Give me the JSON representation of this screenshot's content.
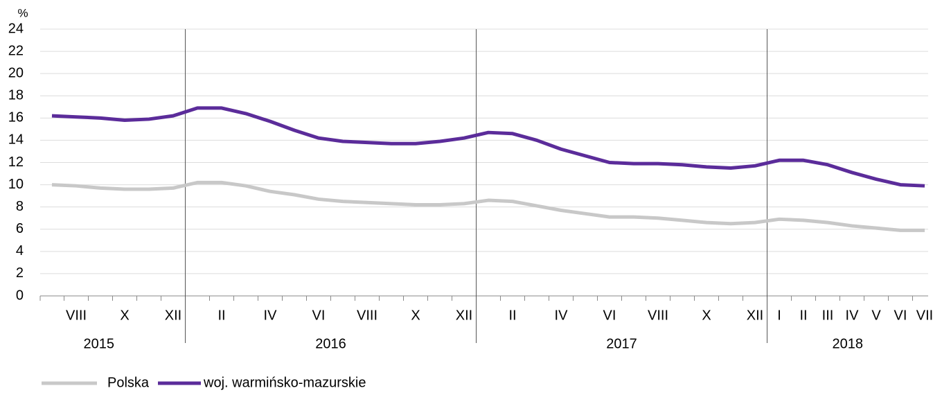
{
  "chart_data": {
    "type": "line",
    "y_unit": "%",
    "categories": [
      null,
      "VIII",
      null,
      "X",
      null,
      "XII",
      null,
      "II",
      null,
      "IV",
      null,
      "VI",
      null,
      "VIII",
      null,
      "X",
      null,
      "XII",
      null,
      "II",
      null,
      "IV",
      null,
      "VI",
      null,
      "VIII",
      null,
      "X",
      null,
      "XII",
      "I",
      "II",
      "III",
      "IV",
      "V",
      "VI",
      "VII"
    ],
    "groups": [
      {
        "label": "2015",
        "span": 6
      },
      {
        "label": "2016",
        "span": 12
      },
      {
        "label": "2017",
        "span": 12
      },
      {
        "label": "2018",
        "span": 7
      }
    ],
    "series": [
      {
        "name": "Polska",
        "color": "#c8c8c8",
        "values": [
          10.0,
          9.9,
          9.7,
          9.6,
          9.6,
          9.7,
          10.2,
          10.2,
          9.9,
          9.4,
          9.1,
          8.7,
          8.5,
          8.4,
          8.3,
          8.2,
          8.2,
          8.3,
          8.6,
          8.5,
          8.1,
          7.7,
          7.4,
          7.1,
          7.1,
          7.0,
          6.8,
          6.6,
          6.5,
          6.6,
          6.9,
          6.8,
          6.6,
          6.3,
          6.1,
          5.9,
          5.9
        ]
      },
      {
        "name": "woj. warmińsko-mazurskie",
        "color": "#5b2c9a",
        "values": [
          16.2,
          16.1,
          16.0,
          15.8,
          15.9,
          16.2,
          16.9,
          16.9,
          16.4,
          15.7,
          14.9,
          14.2,
          13.9,
          13.8,
          13.7,
          13.7,
          13.9,
          14.2,
          14.7,
          14.6,
          14.0,
          13.2,
          12.6,
          12.0,
          11.9,
          11.9,
          11.8,
          11.6,
          11.5,
          11.7,
          12.2,
          12.2,
          11.8,
          11.1,
          10.5,
          10.0,
          9.9
        ]
      }
    ],
    "ylim": [
      0,
      24
    ],
    "yticks": [
      0,
      2,
      4,
      6,
      8,
      10,
      12,
      14,
      16,
      18,
      20,
      22,
      24
    ],
    "grid": true
  }
}
